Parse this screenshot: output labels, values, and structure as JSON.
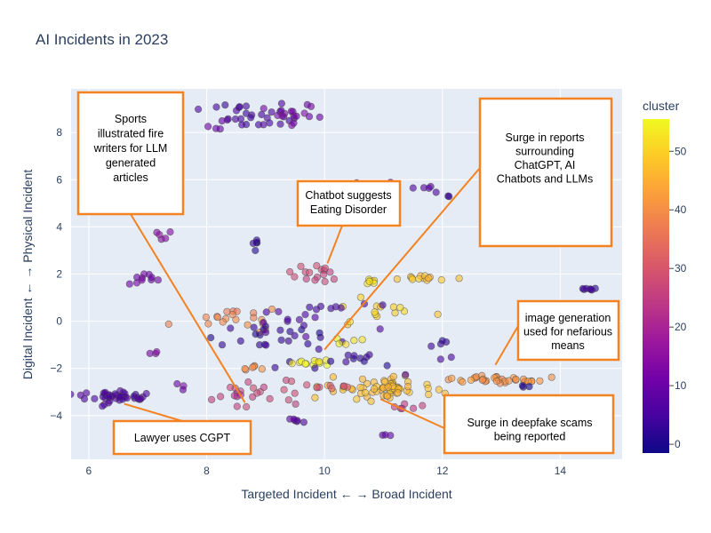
{
  "chart_data": {
    "type": "scatter",
    "title": "AI Incidents in 2023",
    "xlabel": "Targeted Incident ← → Broad Incident",
    "ylabel": "Digital Incident ← → Physical Incident",
    "xlim": [
      5.7,
      15.05
    ],
    "ylim": [
      -5.85,
      9.85
    ],
    "x_ticks": [
      6,
      8,
      10,
      12,
      14
    ],
    "y_ticks": [
      -4,
      -2,
      0,
      2,
      4,
      6,
      8
    ],
    "grid": true,
    "colorbar": {
      "title": "cluster",
      "min": -1.5,
      "max": 55.5,
      "ticks": [
        0,
        10,
        20,
        30,
        40,
        50
      ]
    },
    "clusters": [
      {
        "x": 8.85,
        "y": 8.6,
        "sx": 0.35,
        "sy": 0.25,
        "n": 28,
        "c": 5
      },
      {
        "x": 9.45,
        "y": 8.75,
        "sx": 0.25,
        "sy": 0.2,
        "n": 16,
        "c": 12
      },
      {
        "x": 8.1,
        "y": 8.2,
        "sx": 0.12,
        "sy": 0.12,
        "n": 4,
        "c": 10
      },
      {
        "x": 10.95,
        "y": 5.7,
        "sx": 0.3,
        "sy": 0.2,
        "n": 6,
        "c": 9
      },
      {
        "x": 11.75,
        "y": 5.55,
        "sx": 0.15,
        "sy": 0.1,
        "n": 5,
        "c": 6
      },
      {
        "x": 12.1,
        "y": 5.35,
        "sx": 0.05,
        "sy": 0.05,
        "n": 2,
        "c": 3
      },
      {
        "x": 7.2,
        "y": 3.6,
        "sx": 0.1,
        "sy": 0.1,
        "n": 5,
        "c": 15
      },
      {
        "x": 8.85,
        "y": 3.3,
        "sx": 0.05,
        "sy": 0.15,
        "n": 5,
        "c": 2
      },
      {
        "x": 9.9,
        "y": 2.0,
        "sx": 0.22,
        "sy": 0.18,
        "n": 16,
        "c": 27
      },
      {
        "x": 6.95,
        "y": 1.8,
        "sx": 0.15,
        "sy": 0.1,
        "n": 10,
        "c": 11
      },
      {
        "x": 11.7,
        "y": 1.8,
        "sx": 0.35,
        "sy": 0.1,
        "n": 14,
        "c": 47
      },
      {
        "x": 10.8,
        "y": 1.7,
        "sx": 0.1,
        "sy": 0.1,
        "n": 6,
        "c": 52
      },
      {
        "x": 11.0,
        "y": 0.4,
        "sx": 0.35,
        "sy": 0.25,
        "n": 14,
        "c": 50
      },
      {
        "x": 14.45,
        "y": 1.35,
        "sx": 0.07,
        "sy": 0.03,
        "n": 7,
        "c": 4
      },
      {
        "x": 8.4,
        "y": 0.1,
        "sx": 0.35,
        "sy": 0.25,
        "n": 20,
        "c": 38
      },
      {
        "x": 8.9,
        "y": -0.9,
        "sx": 0.55,
        "sy": 0.4,
        "n": 22,
        "c": 2
      },
      {
        "x": 9.75,
        "y": 0.3,
        "sx": 0.55,
        "sy": 0.55,
        "n": 22,
        "c": 6
      },
      {
        "x": 8.7,
        "y": -2.0,
        "sx": 0.12,
        "sy": 0.1,
        "n": 6,
        "c": 40
      },
      {
        "x": 9.8,
        "y": -1.75,
        "sx": 0.18,
        "sy": 0.08,
        "n": 12,
        "c": 54
      },
      {
        "x": 10.55,
        "y": -0.9,
        "sx": 0.2,
        "sy": 0.15,
        "n": 5,
        "c": 53
      },
      {
        "x": 10.5,
        "y": -1.6,
        "sx": 0.35,
        "sy": 0.3,
        "n": 12,
        "c": 3
      },
      {
        "x": 11.0,
        "y": -2.85,
        "sx": 0.45,
        "sy": 0.2,
        "n": 65,
        "c": 47
      },
      {
        "x": 11.4,
        "y": -3.6,
        "sx": 0.15,
        "sy": 0.1,
        "n": 6,
        "c": 25
      },
      {
        "x": 12.6,
        "y": -2.45,
        "sx": 0.3,
        "sy": 0.08,
        "n": 18,
        "c": 41
      },
      {
        "x": 13.25,
        "y": -2.55,
        "sx": 0.25,
        "sy": 0.1,
        "n": 16,
        "c": 40
      },
      {
        "x": 13.45,
        "y": -2.75,
        "sx": 0.05,
        "sy": 0.03,
        "n": 3,
        "c": 1
      },
      {
        "x": 12.1,
        "y": -1.4,
        "sx": 0.4,
        "sy": 0.4,
        "n": 7,
        "c": 4
      },
      {
        "x": 6.5,
        "y": -3.2,
        "sx": 0.3,
        "sy": 0.1,
        "n": 40,
        "c": 6
      },
      {
        "x": 6.25,
        "y": -3.5,
        "sx": 0.05,
        "sy": 0.05,
        "n": 3,
        "c": 5
      },
      {
        "x": 8.8,
        "y": -3.1,
        "sx": 0.4,
        "sy": 0.3,
        "n": 18,
        "c": 27
      },
      {
        "x": 8.5,
        "y": -3.1,
        "sx": 0.1,
        "sy": 0.05,
        "n": 4,
        "c": 22
      },
      {
        "x": 9.5,
        "y": -4.2,
        "sx": 0.07,
        "sy": 0.05,
        "n": 6,
        "c": 7
      },
      {
        "x": 10.1,
        "y": -2.75,
        "sx": 0.4,
        "sy": 0.15,
        "n": 10,
        "c": 30
      },
      {
        "x": 11.0,
        "y": -4.85,
        "sx": 0.05,
        "sy": 0.08,
        "n": 3,
        "c": 8
      },
      {
        "x": 7.6,
        "y": -2.8,
        "sx": 0.1,
        "sy": 0.15,
        "n": 3,
        "c": 12
      },
      {
        "x": 7.1,
        "y": -1.4,
        "sx": 0.1,
        "sy": 0.15,
        "n": 3,
        "c": 13
      }
    ],
    "annotations": [
      {
        "lines": [
          "Sports",
          "illustrated fire",
          "writers for LLM",
          "generated",
          "articles"
        ],
        "arrow_to": [
          8.65,
          -3.45
        ]
      },
      {
        "lines": [
          "Chatbot suggests",
          "Eating Disorder"
        ],
        "arrow_to": [
          10.05,
          2.45
        ]
      },
      {
        "lines": [
          "Surge in reports",
          "surrounding",
          "ChatGPT, AI",
          "Chatbots and LLMs"
        ],
        "arrow_to": [
          10.0,
          -1.2
        ]
      },
      {
        "lines": [
          "image generation",
          "used for nefarious",
          "means"
        ],
        "arrow_to": [
          12.9,
          -1.85
        ]
      },
      {
        "lines": [
          "Lawyer uses CGPT"
        ],
        "arrow_to": [
          6.6,
          -3.5
        ]
      },
      {
        "lines": [
          "Surge in deepfake scams",
          "being reported"
        ],
        "arrow_to": [
          10.95,
          -3.3
        ]
      }
    ]
  }
}
